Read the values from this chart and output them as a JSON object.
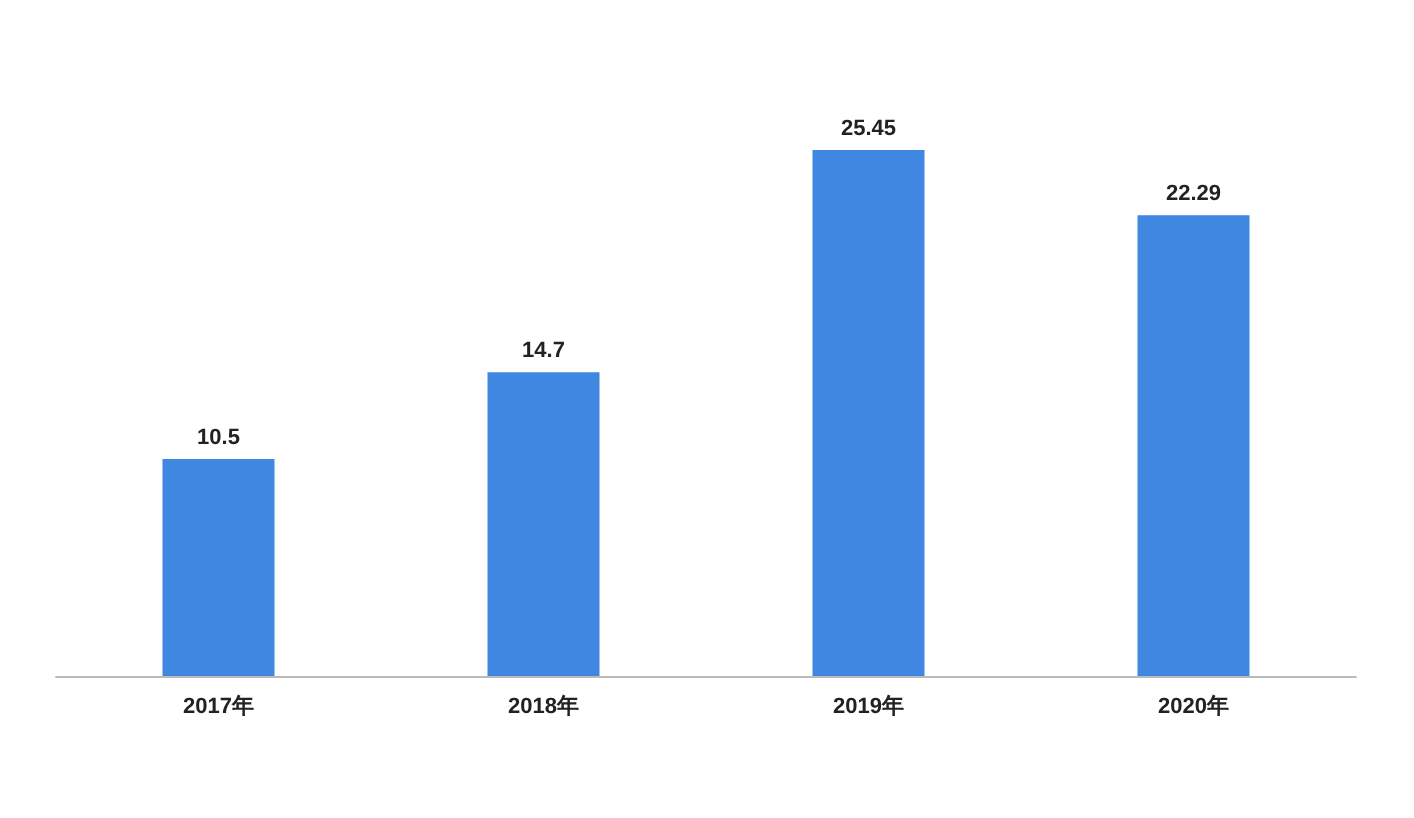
{
  "chart_data": {
    "type": "bar",
    "categories": [
      "2017年",
      "2018年",
      "2019年",
      "2020年"
    ],
    "values": [
      10.5,
      14.7,
      25.45,
      22.29
    ],
    "color": "#3f87e0",
    "data_labels": true
  }
}
